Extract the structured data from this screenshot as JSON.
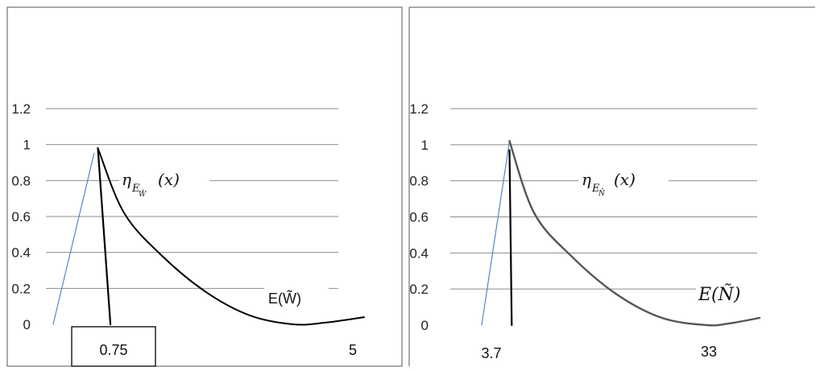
{
  "colors": {
    "grid": "#8c8c8c",
    "blue_line": "#4a7cc2",
    "curve_left": "#000000",
    "curve_right": "#555555",
    "frame": "#555555",
    "text": "#222222"
  },
  "chart_data": [
    {
      "type": "line",
      "title": "",
      "ylim": [
        0,
        1.2
      ],
      "y_ticks": [
        "0",
        "0.2",
        "0.4",
        "0.6",
        "0.8",
        "1",
        "1.2"
      ],
      "grid": true,
      "x_tick_labels": [
        "0.75",
        "5"
      ],
      "membership_label": {
        "eta": "η",
        "sub": "E",
        "subsub": "W̃",
        "arg": "(x)"
      },
      "axis_label": "E(W̃)",
      "series": [
        {
          "values": [
            [
              0,
              0
            ],
            [
              0.75,
              0.95
            ]
          ]
        },
        {
          "values": [
            [
              0.82,
              0.98
            ],
            [
              1.05,
              0
            ]
          ]
        },
        {
          "values": [
            [
              0.82,
              0.98
            ],
            [
              1.3,
              0.62
            ],
            [
              2.0,
              0.38
            ],
            [
              2.8,
              0.18
            ],
            [
              3.6,
              0.05
            ],
            [
              4.4,
              0.0
            ],
            [
              5.0,
              0.01
            ],
            [
              5.7,
              0.04
            ]
          ]
        }
      ]
    },
    {
      "type": "line",
      "title": "",
      "ylim": [
        0,
        1.2
      ],
      "y_ticks": [
        "0",
        "0.2",
        "0.4",
        "0.6",
        "0.8",
        "1",
        "1.2"
      ],
      "grid": true,
      "x_tick_labels": [
        "3.7",
        "33"
      ],
      "membership_label": {
        "eta": "η",
        "sub": "E",
        "subsub": "Ñ",
        "arg": "(x)"
      },
      "axis_label": "E(Ñ)",
      "series": [
        {
          "values": [
            [
              0,
              0
            ],
            [
              3.7,
              1.02
            ]
          ]
        },
        {
          "values": [
            [
              3.7,
              0.97
            ],
            [
              4.0,
              0
            ]
          ]
        },
        {
          "values": [
            [
              3.7,
              1.02
            ],
            [
              7,
              0.62
            ],
            [
              12,
              0.38
            ],
            [
              18,
              0.17
            ],
            [
              24,
              0.04
            ],
            [
              30,
              0.0
            ],
            [
              33,
              0.01
            ],
            [
              37,
              0.04
            ]
          ]
        }
      ]
    }
  ]
}
